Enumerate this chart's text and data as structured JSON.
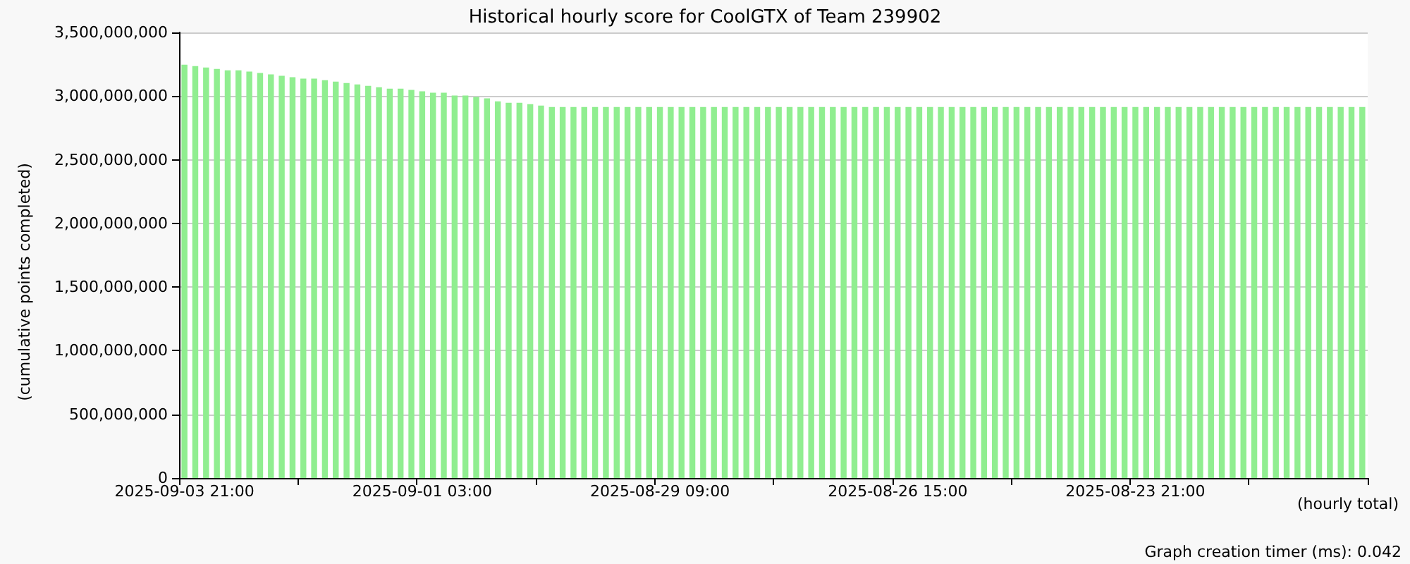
{
  "chart_data": {
    "type": "bar",
    "title": "Historical hourly score for CoolGTX of Team 239902",
    "ylabel": "(cumulative points completed)",
    "xlabel": "(hourly total)",
    "annotations": [
      "Graph creation timer (ms): 0.042"
    ],
    "categories": [
      "2025-09-03 21:00",
      null,
      null,
      null,
      null,
      null,
      null,
      null,
      null,
      null,
      null,
      null,
      null,
      null,
      null,
      null,
      null,
      null,
      null,
      null,
      null,
      null,
      "2025-09-01 03:00",
      null,
      null,
      null,
      null,
      null,
      null,
      null,
      null,
      null,
      null,
      null,
      null,
      null,
      null,
      null,
      null,
      null,
      null,
      null,
      null,
      null,
      "2025-08-29 09:00",
      null,
      null,
      null,
      null,
      null,
      null,
      null,
      null,
      null,
      null,
      null,
      null,
      null,
      null,
      null,
      null,
      null,
      null,
      null,
      null,
      null,
      "2025-08-26 15:00",
      null,
      null,
      null,
      null,
      null,
      null,
      null,
      null,
      null,
      null,
      null,
      null,
      null,
      null,
      null,
      null,
      null,
      null,
      null,
      null,
      null,
      "2025-08-23 21:00",
      null,
      null,
      null,
      null,
      null,
      null,
      null,
      null,
      null,
      null,
      null,
      null,
      null,
      null,
      null,
      null,
      null,
      null,
      null,
      null,
      null
    ],
    "values": [
      3247000000,
      3236000000,
      3225000000,
      3214000000,
      3203000000,
      3203000000,
      3192000000,
      3181000000,
      3170000000,
      3159000000,
      3148000000,
      3137000000,
      3137000000,
      3125000000,
      3114000000,
      3103000000,
      3092000000,
      3081000000,
      3070000000,
      3059000000,
      3059000000,
      3048000000,
      3037000000,
      3026000000,
      3026000000,
      3004000000,
      3004000000,
      2993000000,
      2982000000,
      2959000000,
      2948000000,
      2948000000,
      2937000000,
      2926000000,
      2915000000,
      2915000000,
      2915000000,
      2915000000,
      2915000000,
      2915000000,
      2915000000,
      2915000000,
      2915000000,
      2915000000,
      2915000000,
      2915000000,
      2915000000,
      2915000000,
      2915000000,
      2915000000,
      2915000000,
      2915000000,
      2915000000,
      2915000000,
      2915000000,
      2915000000,
      2915000000,
      2915000000,
      2915000000,
      2915000000,
      2915000000,
      2915000000,
      2915000000,
      2915000000,
      2915000000,
      2915000000,
      2915000000,
      2915000000,
      2915000000,
      2915000000,
      2915000000,
      2915000000,
      2915000000,
      2915000000,
      2915000000,
      2915000000,
      2915000000,
      2915000000,
      2915000000,
      2915000000,
      2915000000,
      2915000000,
      2915000000,
      2915000000,
      2915000000,
      2915000000,
      2915000000,
      2915000000,
      2915000000,
      2915000000,
      2915000000,
      2915000000,
      2915000000,
      2915000000,
      2915000000,
      2915000000,
      2915000000,
      2915000000,
      2915000000,
      2915000000,
      2915000000,
      2915000000,
      2915000000,
      2915000000,
      2915000000,
      2915000000,
      2915000000,
      2915000000,
      2915000000,
      2915000000
    ],
    "color": "#90ee90",
    "ylim": [
      0,
      3500000000
    ],
    "yticks": [
      0,
      {
        "value": 500000000,
        "label": "500,000,000"
      },
      {
        "value": 1000000000,
        "label": "1,000,000,000"
      },
      {
        "value": 1500000000,
        "label": "1,500,000,000"
      },
      {
        "value": 2000000000,
        "label": "2,000,000,000"
      },
      {
        "value": 2500000000,
        "label": "2,500,000,000"
      },
      {
        "value": 3000000000,
        "label": "3,000,000,000"
      },
      {
        "value": 3500000000,
        "label": "3,500,000,000"
      }
    ],
    "grid": "y"
  }
}
